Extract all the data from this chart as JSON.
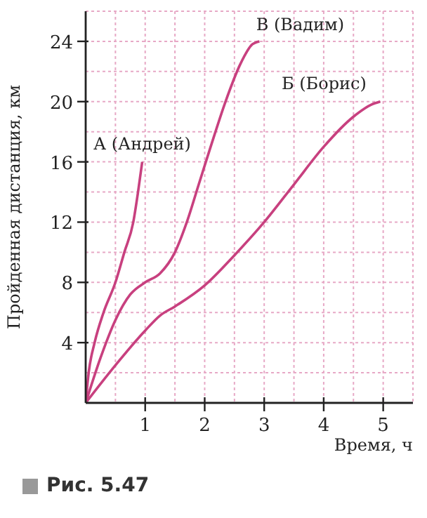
{
  "chart_data": {
    "type": "line",
    "xlabel": "Время, ч",
    "ylabel": "Пройденная дистанция, км",
    "xlim": [
      0,
      5.5
    ],
    "ylim": [
      0,
      26
    ],
    "xticks": [
      {
        "value": 0.5,
        "label": null
      },
      1,
      {
        "value": 1.5,
        "label": null
      },
      2,
      {
        "value": 2.5,
        "label": null
      },
      3,
      {
        "value": 3.5,
        "label": null
      },
      4,
      {
        "value": 4.5,
        "label": null
      },
      5
    ],
    "yticks": [
      {
        "value": 2,
        "label": null
      },
      4,
      {
        "value": 6,
        "label": null
      },
      8,
      {
        "value": 10,
        "label": null
      },
      12,
      {
        "value": 14,
        "label": null
      },
      16,
      {
        "value": 18,
        "label": null
      },
      20,
      {
        "value": 22,
        "label": null
      },
      24
    ],
    "grid": true,
    "marker": "none",
    "line_style": "solid",
    "series": [
      {
        "name": "А (Андрей)",
        "color": "#c8407f",
        "x": [
          0,
          0.05,
          0.15,
          0.3,
          0.5,
          0.65,
          0.8,
          0.88,
          0.95
        ],
        "values": [
          0,
          2,
          4,
          6,
          8,
          10,
          12,
          14,
          16
        ]
      },
      {
        "name": "В (Вадим)",
        "color": "#c8407f",
        "x": [
          0,
          0.25,
          0.5,
          0.75,
          1,
          1.25,
          1.5,
          1.7,
          1.9,
          2.1,
          2.35,
          2.6,
          2.8,
          2.92
        ],
        "values": [
          0,
          3,
          5.5,
          7.2,
          8,
          8.6,
          10,
          12,
          14.5,
          17,
          20,
          22.5,
          23.8,
          24
        ]
      },
      {
        "name": "Б (Борис)",
        "color": "#c8407f",
        "x": [
          0,
          0.5,
          1,
          1.25,
          1.5,
          2,
          2.5,
          3,
          3.5,
          4,
          4.5,
          4.8,
          4.95
        ],
        "values": [
          0,
          2.5,
          4.8,
          5.8,
          6.4,
          7.8,
          9.8,
          12,
          14.5,
          17,
          19,
          19.8,
          20
        ]
      }
    ],
    "annotations": [
      "Рис. 5.47"
    ]
  }
}
